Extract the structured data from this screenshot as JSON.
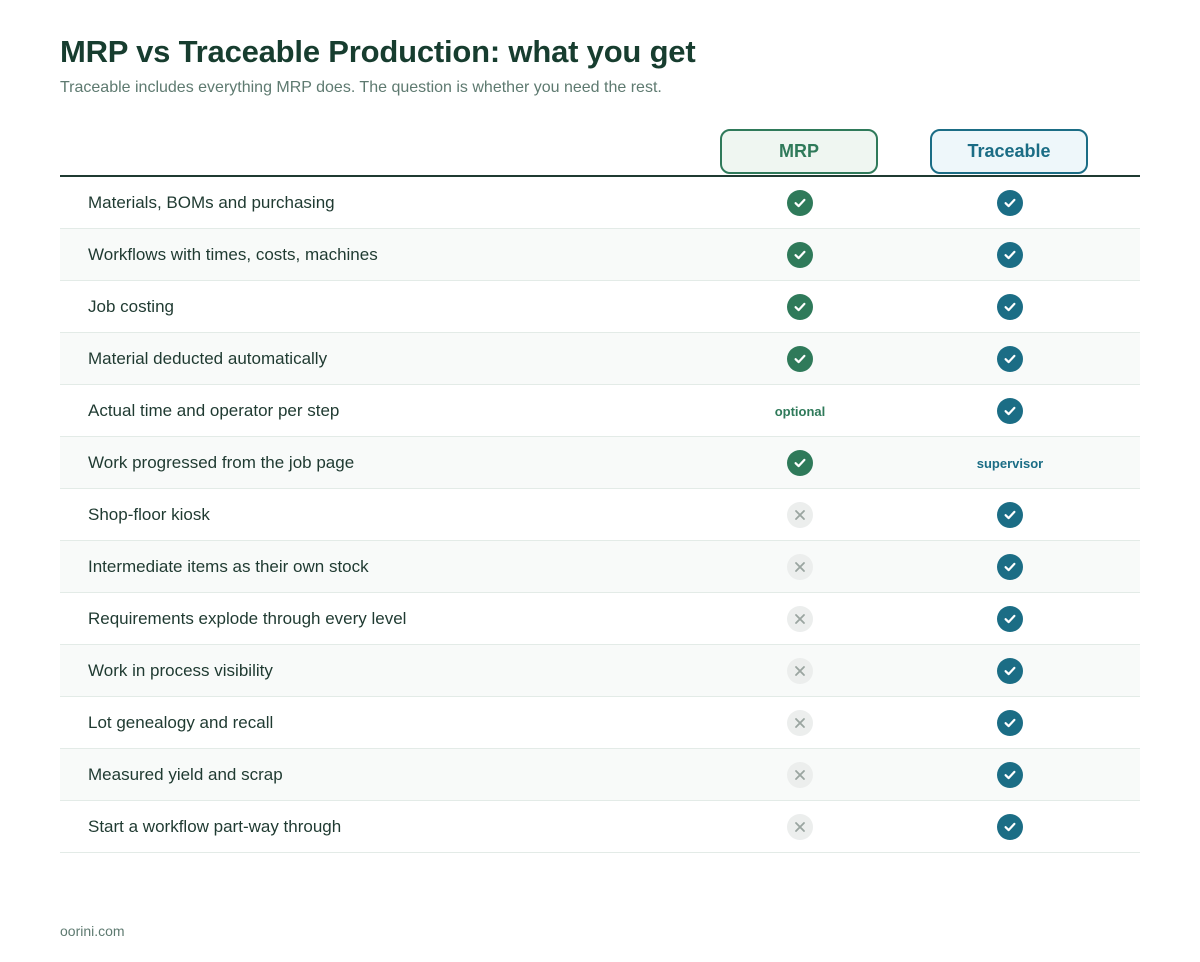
{
  "title": "MRP vs Traceable Production: what you get",
  "subtitle": "Traceable includes everything MRP does. The question is whether you need the rest.",
  "columns": {
    "mrp": "MRP",
    "traceable": "Traceable"
  },
  "colors": {
    "mrp": "#2f7a5a",
    "traceable": "#1b6d85",
    "cross": "#9aa5a0"
  },
  "rows": [
    {
      "feature": "Materials, BOMs and purchasing",
      "mrp": "check",
      "traceable": "check"
    },
    {
      "feature": "Workflows with times, costs, machines",
      "mrp": "check",
      "traceable": "check"
    },
    {
      "feature": "Job costing",
      "mrp": "check",
      "traceable": "check"
    },
    {
      "feature": "Material deducted automatically",
      "mrp": "check",
      "traceable": "check"
    },
    {
      "feature": "Actual time and operator per step",
      "mrp": "optional",
      "traceable": "check"
    },
    {
      "feature": "Work progressed from the job page",
      "mrp": "check",
      "traceable": "supervisor"
    },
    {
      "feature": "Shop-floor kiosk",
      "mrp": "cross",
      "traceable": "check"
    },
    {
      "feature": "Intermediate items as their own stock",
      "mrp": "cross",
      "traceable": "check"
    },
    {
      "feature": "Requirements explode through every level",
      "mrp": "cross",
      "traceable": "check"
    },
    {
      "feature": "Work in process visibility",
      "mrp": "cross",
      "traceable": "check"
    },
    {
      "feature": "Lot genealogy and recall",
      "mrp": "cross",
      "traceable": "check"
    },
    {
      "feature": "Measured yield and scrap",
      "mrp": "cross",
      "traceable": "check"
    },
    {
      "feature": "Start a workflow part-way through",
      "mrp": "cross",
      "traceable": "check"
    }
  ],
  "footer": "oorini.com"
}
